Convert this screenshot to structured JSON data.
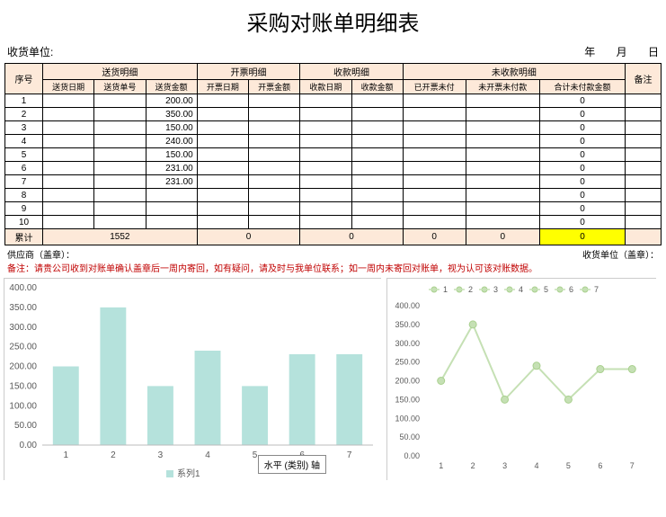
{
  "title": "采购对账单明细表",
  "header": {
    "receiver_label": "收货单位:",
    "year_label": "年",
    "month_label": "月",
    "day_label": "日"
  },
  "table": {
    "seq_header": "序号",
    "remark_header": "备注",
    "groups": [
      "送货明细",
      "开票明细",
      "收款明细",
      "未收款明细"
    ],
    "subheaders": [
      "送货日期",
      "送货单号",
      "送货金额",
      "开票日期",
      "开票金额",
      "收款日期",
      "收款金额",
      "已开票未付",
      "未开票未付款",
      "合计未付款金额"
    ],
    "rows": [
      {
        "seq": "1",
        "amount": "200.00",
        "unpaid": "0"
      },
      {
        "seq": "2",
        "amount": "350.00",
        "unpaid": "0"
      },
      {
        "seq": "3",
        "amount": "150.00",
        "unpaid": "0"
      },
      {
        "seq": "4",
        "amount": "240.00",
        "unpaid": "0"
      },
      {
        "seq": "5",
        "amount": "150.00",
        "unpaid": "0"
      },
      {
        "seq": "6",
        "amount": "231.00",
        "unpaid": "0"
      },
      {
        "seq": "7",
        "amount": "231.00",
        "unpaid": "0"
      },
      {
        "seq": "8",
        "amount": "",
        "unpaid": "0"
      },
      {
        "seq": "9",
        "amount": "",
        "unpaid": "0"
      },
      {
        "seq": "10",
        "amount": "",
        "unpaid": "0"
      }
    ],
    "total_label": "累计",
    "totals": {
      "delivery": "1552",
      "invoice": "0",
      "receipt": "0",
      "unpaid1": "0",
      "unpaid2": "0",
      "unpaid3": "0"
    }
  },
  "footer": {
    "supplier": "供应商（盖章）：",
    "receiver": "收货单位（盖章）：",
    "note": "备注：请贵公司收到对账单确认盖章后一周内寄回，如有疑问，请及时与我单位联系；如一周内未寄回对账单，视为认可该对账数据。"
  },
  "bar_chart": {
    "type": "bar",
    "categories": [
      "1",
      "2",
      "3",
      "4",
      "5",
      "6",
      "7"
    ],
    "values": [
      200,
      350,
      150,
      240,
      150,
      231,
      231
    ],
    "ylim": [
      0,
      400
    ],
    "ytick_step": 50,
    "bar_color": "#b5e2dc",
    "background_color": "#ffffff",
    "text_color": "#595959",
    "legend_label": "系列1",
    "x_axis_label": "水平 (类别) 轴",
    "label_fontsize": 10,
    "bar_width": 0.55
  },
  "line_chart": {
    "type": "line",
    "legend_items": [
      "1",
      "2",
      "3",
      "4",
      "5",
      "6",
      "7"
    ],
    "categories": [
      "1",
      "2",
      "3",
      "4",
      "5",
      "6",
      "7"
    ],
    "values": [
      200,
      350,
      150,
      240,
      150,
      231,
      231
    ],
    "ylim": [
      0,
      400
    ],
    "ytick_step": 50,
    "line_color": "#c5e0b4",
    "marker_color": "#c5e0b4",
    "marker_outline": "#a9d08e",
    "background_color": "#ffffff",
    "text_color": "#595959",
    "line_width": 2,
    "marker_size": 4,
    "label_fontsize": 10
  }
}
